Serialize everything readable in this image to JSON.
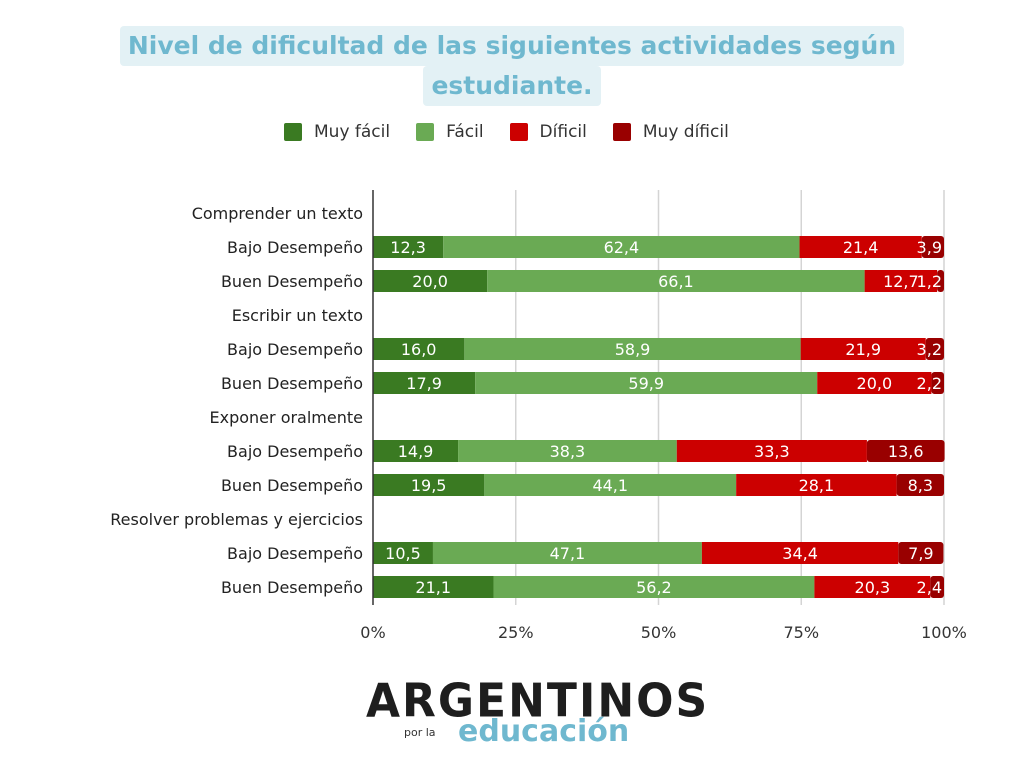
{
  "chart_data": {
    "type": "bar",
    "orientation": "horizontal",
    "stacked": "percent",
    "title": "Nivel de dificultad de las siguientes actividades según estudiante.",
    "title_lines": [
      "Nivel de dificultad de las siguientes actividades según",
      "estudiante."
    ],
    "xlabel": "",
    "ylabel": "",
    "xlim": [
      0,
      100
    ],
    "x_ticks": [
      "0%",
      "25%",
      "50%",
      "75%",
      "100%"
    ],
    "x_tick_values": [
      0,
      25,
      50,
      75,
      100
    ],
    "grid": true,
    "legend_position": "top",
    "legend": [
      "Muy fácil",
      "Fácil",
      "Díficil",
      "Muy díficil"
    ],
    "colors": [
      "#3a7a22",
      "#6aaa54",
      "#cc0000",
      "#990000"
    ],
    "rows": [
      {
        "label": "Comprender un texto",
        "type": "group"
      },
      {
        "label": "Bajo Desempeño",
        "type": "bar",
        "values": [
          12.3,
          62.4,
          21.4,
          3.9
        ],
        "labels": [
          "12,3",
          "62,4",
          "21,4",
          "3,9"
        ]
      },
      {
        "label": "Buen Desempeño",
        "type": "bar",
        "values": [
          20.0,
          66.1,
          12.7,
          1.2
        ],
        "labels": [
          "20,0",
          "66,1",
          "12,7",
          "1,2"
        ]
      },
      {
        "label": "Escribir un texto",
        "type": "group"
      },
      {
        "label": "Bajo Desempeño",
        "type": "bar",
        "values": [
          16.0,
          58.9,
          21.9,
          3.2
        ],
        "labels": [
          "16,0",
          "58,9",
          "21,9",
          "3,2"
        ]
      },
      {
        "label": "Buen Desempeño",
        "type": "bar",
        "values": [
          17.9,
          59.9,
          20.0,
          2.2
        ],
        "labels": [
          "17,9",
          "59,9",
          "20,0",
          "2,2"
        ]
      },
      {
        "label": "Exponer oralmente",
        "type": "group"
      },
      {
        "label": "Bajo Desempeño",
        "type": "bar",
        "values": [
          14.9,
          38.3,
          33.3,
          13.6
        ],
        "labels": [
          "14,9",
          "38,3",
          "33,3",
          "13,6"
        ]
      },
      {
        "label": "Buen Desempeño",
        "type": "bar",
        "values": [
          19.5,
          44.1,
          28.1,
          8.3
        ],
        "labels": [
          "19,5",
          "44,1",
          "28,1",
          "8,3"
        ]
      },
      {
        "label": "Resolver problemas y ejercicios",
        "type": "group"
      },
      {
        "label": "Bajo Desempeño",
        "type": "bar",
        "values": [
          10.5,
          47.1,
          34.4,
          7.9
        ],
        "labels": [
          "10,5",
          "47,1",
          "34,4",
          "7,9"
        ]
      },
      {
        "label": "Buen Desempeño",
        "type": "bar",
        "values": [
          21.1,
          56.2,
          20.3,
          2.4
        ],
        "labels": [
          "21,1",
          "56,2",
          "20,3",
          "2,4"
        ]
      }
    ]
  },
  "branding": {
    "logo_main": "ARGENTINOS",
    "logo_por": "por la",
    "logo_edu": "educación"
  }
}
